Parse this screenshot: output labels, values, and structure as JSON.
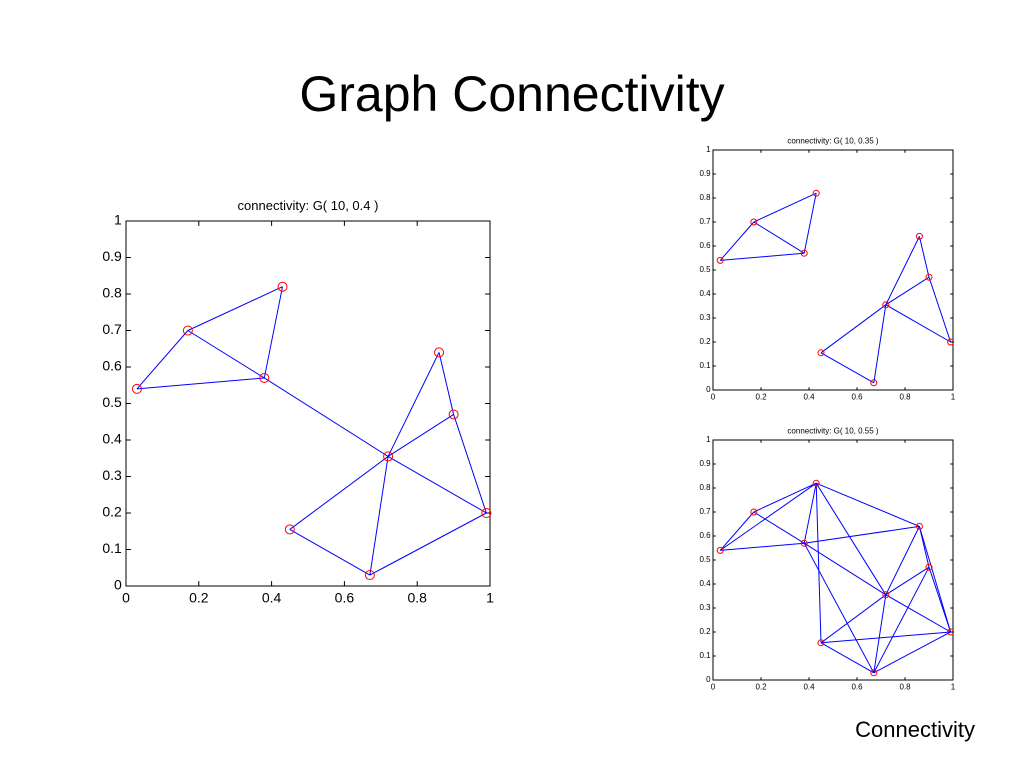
{
  "title": "Graph Connectivity",
  "footer": "Connectivity",
  "chart_data": [
    {
      "type": "network",
      "title": "connectivity: G( 10, 0.4 )",
      "x": [
        0.03,
        0.17,
        0.38,
        0.43,
        0.72,
        0.86,
        0.9,
        0.99,
        0.45,
        0.67
      ],
      "values": [
        0.54,
        0.7,
        0.57,
        0.82,
        0.355,
        0.64,
        0.47,
        0.2,
        0.155,
        0.03
      ],
      "edges": [
        [
          0,
          1
        ],
        [
          0,
          2
        ],
        [
          1,
          2
        ],
        [
          1,
          3
        ],
        [
          2,
          3
        ],
        [
          2,
          4
        ],
        [
          4,
          5
        ],
        [
          4,
          6
        ],
        [
          4,
          7
        ],
        [
          4,
          8
        ],
        [
          4,
          9
        ],
        [
          5,
          6
        ],
        [
          6,
          7
        ],
        [
          8,
          9
        ],
        [
          9,
          7
        ]
      ],
      "color": "#0000ff",
      "marker_color": "#ff0000",
      "xlim": [
        0,
        1
      ],
      "ylim": [
        0,
        1
      ],
      "xticks": [
        0,
        0.2,
        0.4,
        0.6,
        0.8,
        1
      ],
      "yticks": [
        0,
        0.1,
        0.2,
        0.3,
        0.4,
        0.5,
        0.6,
        0.7,
        0.8,
        0.9,
        1
      ]
    },
    {
      "type": "network",
      "title": "connectivity: G( 10, 0.35 )",
      "x": [
        0.03,
        0.17,
        0.38,
        0.43,
        0.72,
        0.86,
        0.9,
        0.99,
        0.45,
        0.67
      ],
      "values": [
        0.54,
        0.7,
        0.57,
        0.82,
        0.355,
        0.64,
        0.47,
        0.2,
        0.155,
        0.03
      ],
      "edges": [
        [
          0,
          1
        ],
        [
          0,
          2
        ],
        [
          1,
          2
        ],
        [
          1,
          3
        ],
        [
          2,
          3
        ],
        [
          4,
          5
        ],
        [
          4,
          6
        ],
        [
          4,
          7
        ],
        [
          4,
          9
        ],
        [
          5,
          6
        ],
        [
          6,
          7
        ],
        [
          8,
          9
        ],
        [
          8,
          4
        ]
      ],
      "color": "#0000ff",
      "marker_color": "#ff0000",
      "xlim": [
        0,
        1
      ],
      "ylim": [
        0,
        1
      ],
      "xticks": [
        0,
        0.2,
        0.4,
        0.6,
        0.8,
        1
      ],
      "yticks": [
        0,
        0.1,
        0.2,
        0.3,
        0.4,
        0.5,
        0.6,
        0.7,
        0.8,
        0.9,
        1
      ]
    },
    {
      "type": "network",
      "title": "connectivity: G( 10, 0.55 )",
      "x": [
        0.03,
        0.17,
        0.38,
        0.43,
        0.72,
        0.86,
        0.9,
        0.99,
        0.45,
        0.67
      ],
      "values": [
        0.54,
        0.7,
        0.57,
        0.82,
        0.355,
        0.64,
        0.47,
        0.2,
        0.155,
        0.03
      ],
      "edges": [
        [
          0,
          1
        ],
        [
          0,
          2
        ],
        [
          0,
          3
        ],
        [
          1,
          2
        ],
        [
          1,
          3
        ],
        [
          2,
          3
        ],
        [
          2,
          4
        ],
        [
          2,
          5
        ],
        [
          2,
          9
        ],
        [
          3,
          4
        ],
        [
          3,
          5
        ],
        [
          3,
          8
        ],
        [
          4,
          5
        ],
        [
          4,
          6
        ],
        [
          4,
          7
        ],
        [
          4,
          8
        ],
        [
          4,
          9
        ],
        [
          5,
          6
        ],
        [
          5,
          7
        ],
        [
          6,
          7
        ],
        [
          6,
          9
        ],
        [
          7,
          8
        ],
        [
          7,
          9
        ],
        [
          8,
          9
        ]
      ],
      "color": "#0000ff",
      "marker_color": "#ff0000",
      "xlim": [
        0,
        1
      ],
      "ylim": [
        0,
        1
      ],
      "xticks": [
        0,
        0.2,
        0.4,
        0.6,
        0.8,
        1
      ],
      "yticks": [
        0,
        0.1,
        0.2,
        0.3,
        0.4,
        0.5,
        0.6,
        0.7,
        0.8,
        0.9,
        1
      ]
    }
  ]
}
